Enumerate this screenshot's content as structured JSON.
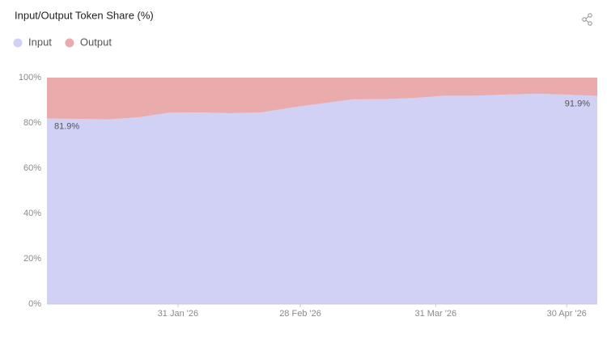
{
  "chart_data": {
    "type": "stacked_area",
    "title": "Input/Output Token Share (%)",
    "x": [
      "2026-01-01",
      "2026-01-08",
      "2026-01-15",
      "2026-01-22",
      "2026-01-29",
      "2026-02-05",
      "2026-02-12",
      "2026-02-19",
      "2026-02-26",
      "2026-03-05",
      "2026-03-12",
      "2026-03-19",
      "2026-03-26",
      "2026-04-02",
      "2026-04-09",
      "2026-04-16",
      "2026-04-23",
      "2026-04-30",
      "2026-05-07"
    ],
    "series": [
      {
        "name": "Input",
        "color": "#d0d1f4",
        "values": [
          81.9,
          81.8,
          81.5,
          82.5,
          84.5,
          84.6,
          84.3,
          84.6,
          86.8,
          88.6,
          90.4,
          90.5,
          91.0,
          92.0,
          92.0,
          92.5,
          92.9,
          92.5,
          91.9
        ],
        "value_labels": [
          "81.9%",
          null,
          null,
          null,
          null,
          null,
          null,
          null,
          null,
          null,
          null,
          null,
          null,
          null,
          null,
          null,
          null,
          null,
          "91.9%"
        ]
      },
      {
        "name": "Output",
        "color": "#e9abab",
        "values": [
          18.1,
          18.2,
          18.5,
          17.5,
          15.5,
          15.4,
          15.7,
          15.4,
          13.2,
          11.4,
          9.6,
          9.5,
          9.0,
          8.0,
          8.0,
          7.5,
          7.1,
          7.5,
          8.1
        ]
      }
    ],
    "xlim": [
      "2026-01-01",
      "2026-05-07"
    ],
    "xticks": [
      {
        "value": "2026-01-31",
        "label": "31 Jan '26"
      },
      {
        "value": "2026-02-28",
        "label": "28 Feb '26"
      },
      {
        "value": "2026-03-31",
        "label": "31 Mar '26"
      },
      {
        "value": "2026-04-30",
        "label": "30 Apr '26"
      }
    ],
    "ylim": [
      0,
      100
    ],
    "yticks": [
      {
        "value": 0,
        "label": "0%"
      },
      {
        "value": 20,
        "label": "20%"
      },
      {
        "value": 40,
        "label": "40%"
      },
      {
        "value": 60,
        "label": "60%"
      },
      {
        "value": 80,
        "label": "80%"
      },
      {
        "value": 100,
        "label": "100%"
      }
    ],
    "grid": false,
    "legend": "top-left"
  }
}
